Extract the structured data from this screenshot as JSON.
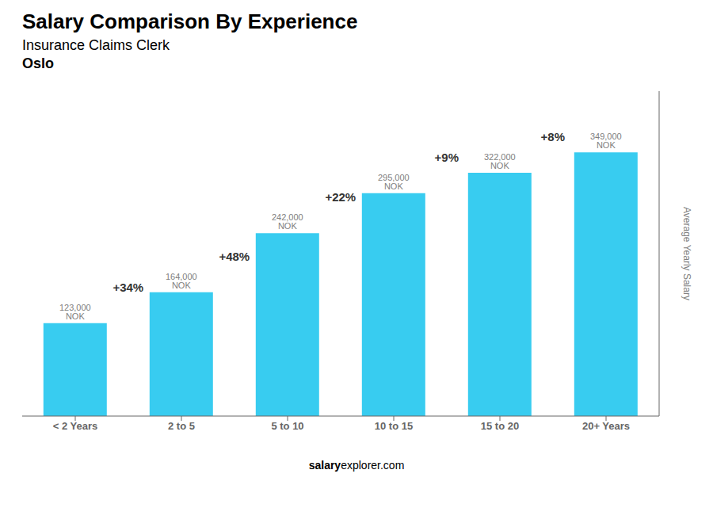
{
  "chart_data": {
    "type": "bar",
    "title": "Salary Comparison By Experience",
    "subtitle": "Insurance Claims Clerk",
    "city": "Oslo",
    "categories": [
      "< 2 Years",
      "2 to 5",
      "5 to 10",
      "10 to 15",
      "15 to 20",
      "20+ Years"
    ],
    "values": [
      123000,
      164000,
      242000,
      295000,
      322000,
      349000
    ],
    "value_labels": [
      "123,000 NOK",
      "164,000 NOK",
      "242,000 NOK",
      "295,000 NOK",
      "322,000 NOK",
      "349,000 NOK"
    ],
    "data_labels": true,
    "annotations": [
      "+34%",
      "+48%",
      "+22%",
      "+9%",
      "+8%"
    ],
    "footer": [
      "salary",
      "explorer.com"
    ],
    "ylabel": "Average Yearly Salary",
    "color": "#38ccf0",
    "ylim": [
      0,
      430000
    ],
    "tick_labels": "x",
    "grid": false
  }
}
